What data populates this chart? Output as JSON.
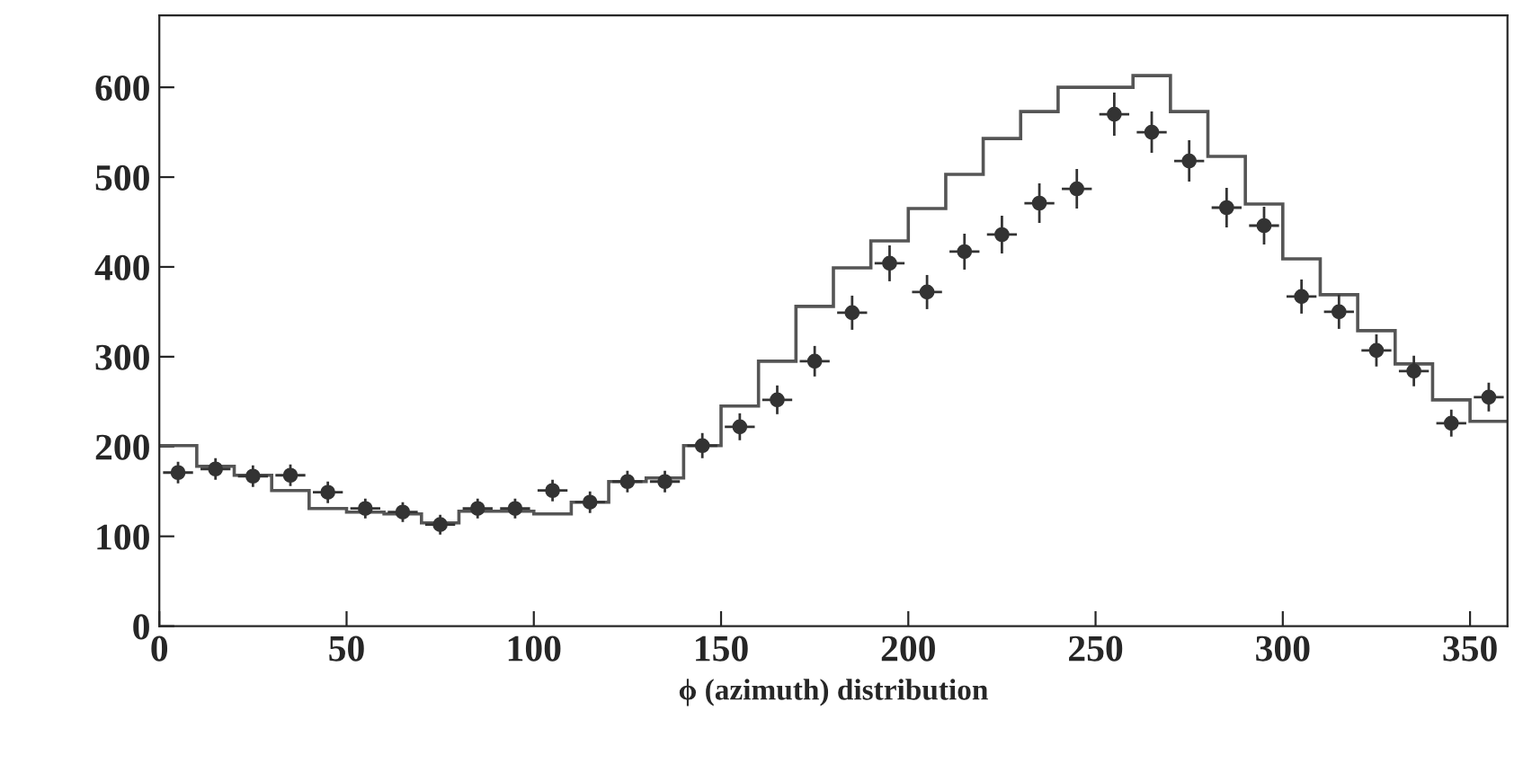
{
  "chart_data": {
    "type": "histogram",
    "xlabel": "ϕ (azimuth) distribution",
    "bins": [
      0,
      10,
      20,
      30,
      40,
      50,
      60,
      70,
      80,
      90,
      100,
      110,
      120,
      130,
      140,
      150,
      160,
      170,
      180,
      190,
      200,
      210,
      220,
      230,
      240,
      250,
      260,
      270,
      280,
      290,
      300,
      310,
      320,
      330,
      340,
      350,
      360
    ],
    "values": [
      201,
      178,
      168,
      151,
      131,
      127,
      125,
      115,
      128,
      128,
      125,
      138,
      161,
      165,
      201,
      245,
      295,
      356,
      399,
      429,
      465,
      503,
      543,
      573,
      600,
      600,
      613,
      573,
      523,
      470,
      409,
      369,
      329,
      292,
      252,
      228
    ],
    "color": "#555555",
    "series": [
      {
        "type": "scatter",
        "color": "#333333",
        "x": [
          5,
          15,
          25,
          35,
          45,
          55,
          65,
          75,
          85,
          95,
          105,
          115,
          125,
          135,
          145,
          155,
          165,
          175,
          185,
          195,
          205,
          215,
          225,
          235,
          245,
          255,
          265,
          275,
          285,
          295,
          305,
          315,
          325,
          335,
          345,
          355
        ],
        "values": [
          171,
          175,
          167,
          168,
          149,
          131,
          127,
          113,
          131,
          131,
          151,
          138,
          161,
          161,
          201,
          222,
          252,
          295,
          349,
          404,
          372,
          417,
          436,
          471,
          487,
          570,
          550,
          518,
          466,
          446,
          367,
          350,
          307,
          284,
          226,
          255
        ],
        "errors": [
          12,
          12,
          12,
          12,
          12,
          11,
          11,
          11,
          11,
          11,
          12,
          12,
          12,
          12,
          14,
          15,
          16,
          17,
          19,
          20,
          19,
          20,
          21,
          22,
          22,
          24,
          23,
          23,
          22,
          21,
          19,
          19,
          18,
          17,
          15,
          16
        ],
        "xerrors": [
          4,
          4,
          4,
          4,
          4,
          4,
          4,
          4,
          4,
          4,
          4,
          4,
          4,
          4,
          4,
          4,
          4,
          4,
          4,
          4,
          4,
          4,
          4,
          4,
          4,
          4,
          4,
          4,
          4,
          4,
          4,
          4,
          4,
          4,
          4,
          4
        ]
      }
    ],
    "marker": "circle",
    "xlim": [
      0,
      360
    ],
    "ylim": [
      0,
      680
    ],
    "xticks": [
      0,
      50,
      100,
      150,
      200,
      250,
      300,
      350
    ],
    "yticks": [
      0,
      100,
      200,
      300,
      400,
      500,
      600
    ],
    "grid": false,
    "legend": false
  }
}
